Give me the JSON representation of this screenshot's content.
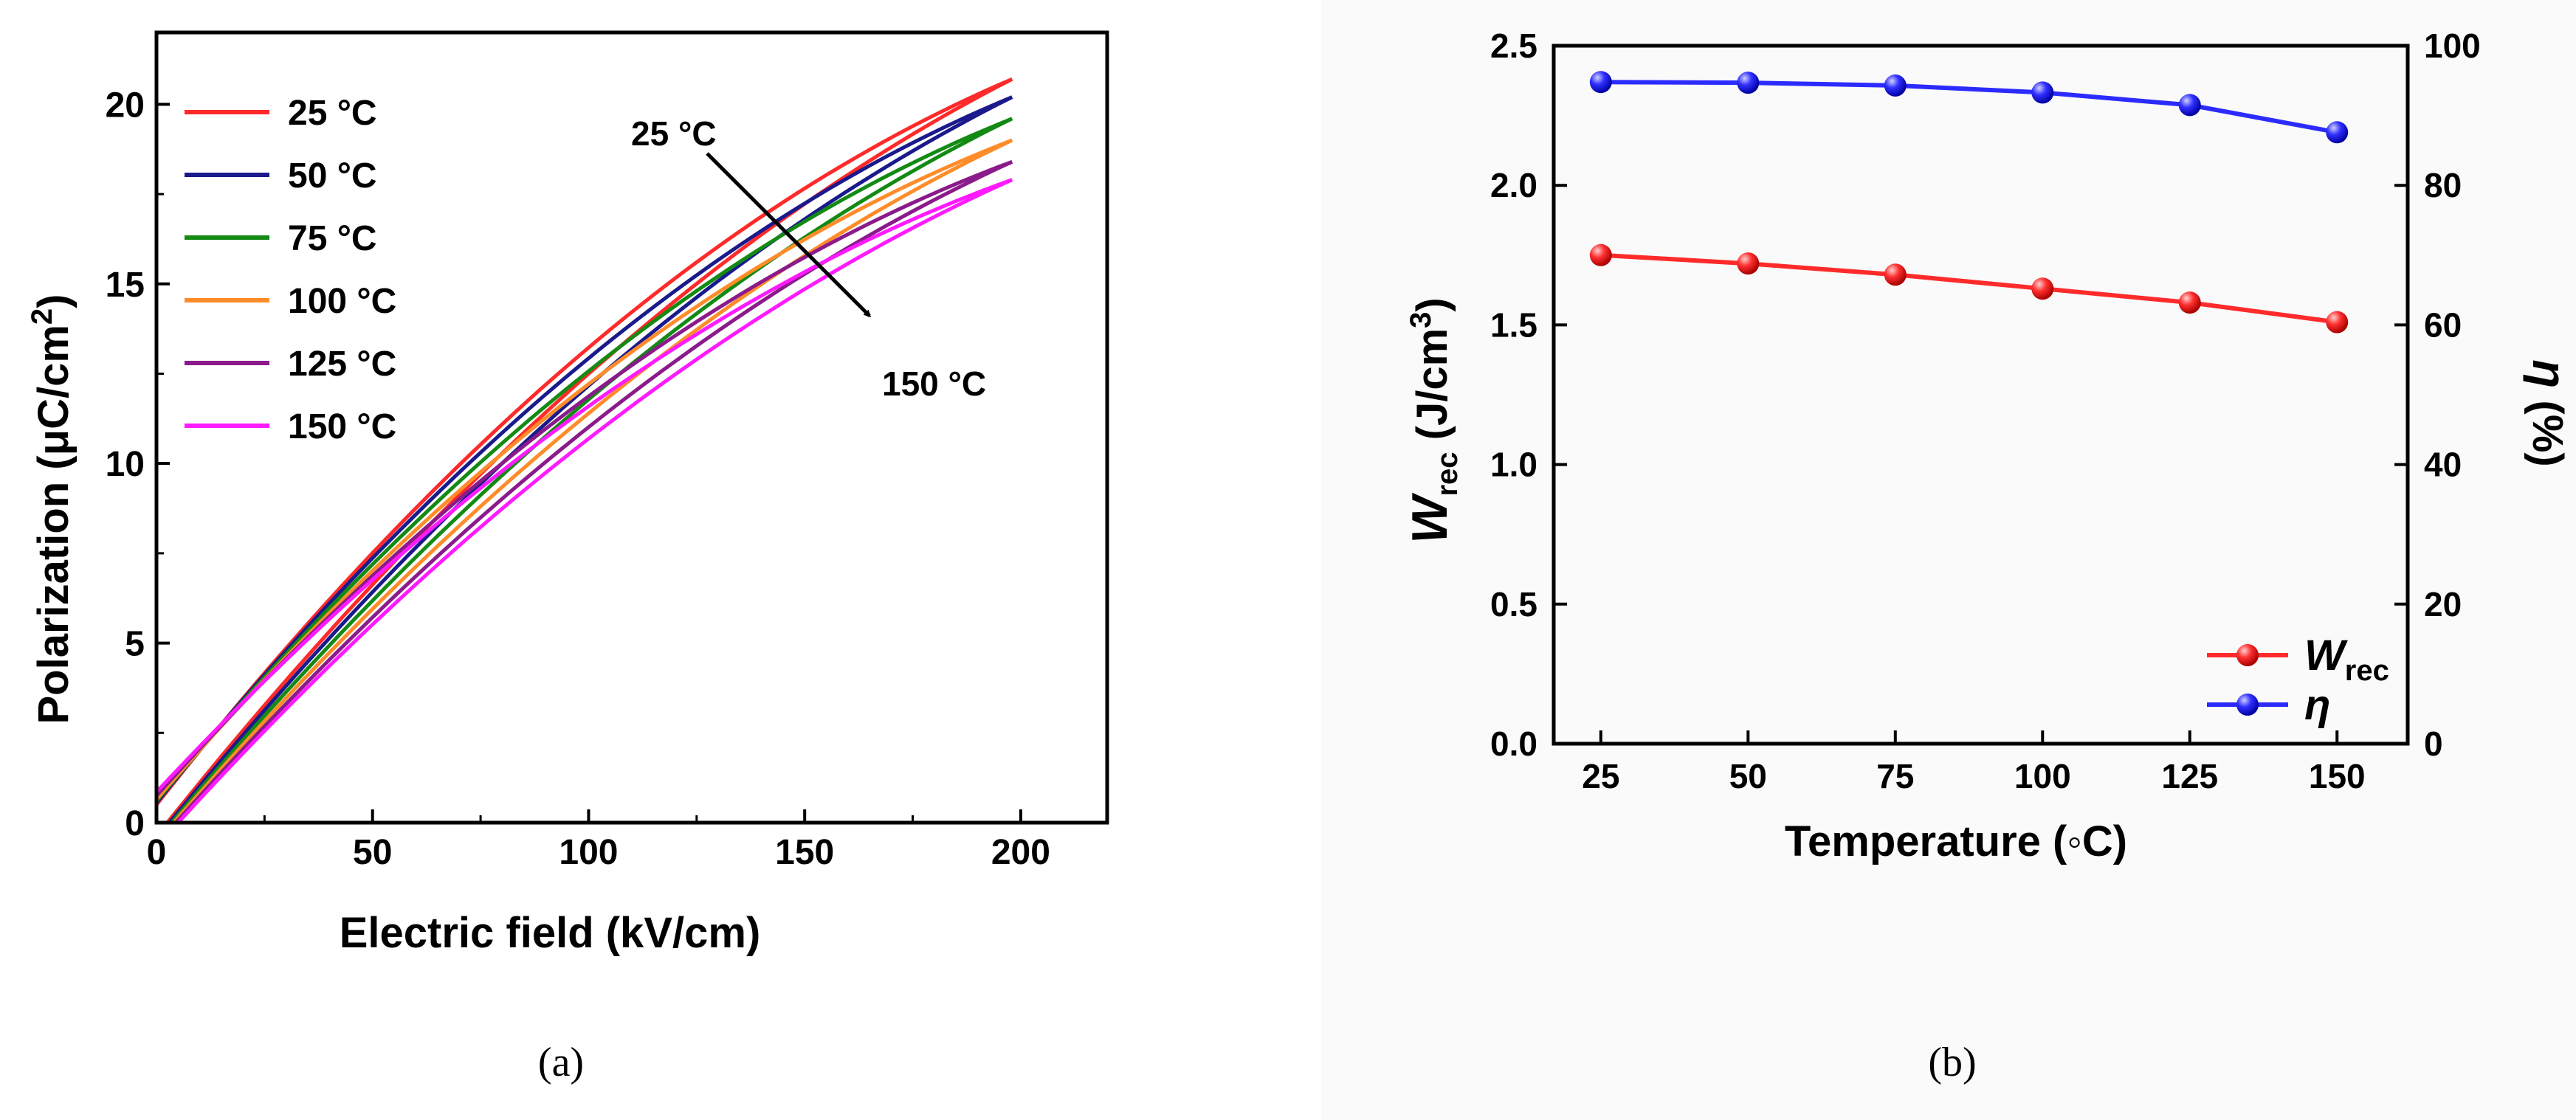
{
  "chart_data": [
    {
      "panel": "a",
      "caption": "(a)",
      "type": "line",
      "xlabel": "Electric field (kV/cm)",
      "ylabel": "Polarization (μC/cm²)",
      "ylabel_parts": {
        "main": "Polarization (μC/cm",
        "sup": "2",
        "end": ")"
      },
      "xlim": [
        0,
        220
      ],
      "ylim": [
        0,
        22
      ],
      "xticks": [
        0,
        50,
        100,
        150,
        200
      ],
      "yticks": [
        0,
        5,
        10,
        15,
        20
      ],
      "series": [
        {
          "name": "25 °C",
          "color": "#ff2a2a",
          "Pmax": 20.7,
          "Pr": 0.5,
          "Pr_low": 0.0,
          "shift": 2.5
        },
        {
          "name": "50 °C",
          "color": "#1a1a8c",
          "Pmax": 20.2,
          "Pr": 0.55,
          "Pr_low": 0.0,
          "shift": 3.0
        },
        {
          "name": "75 °C",
          "color": "#138a13",
          "Pmax": 19.6,
          "Pr": 0.6,
          "Pr_low": 0.0,
          "shift": 3.5
        },
        {
          "name": "100 °C",
          "color": "#ff8c2a",
          "Pmax": 19.0,
          "Pr": 0.65,
          "Pr_low": 0.0,
          "shift": 4.0
        },
        {
          "name": "125 °C",
          "color": "#8b1a8b",
          "Pmax": 18.4,
          "Pr": 0.75,
          "Pr_low": 0.0,
          "shift": 4.5
        },
        {
          "name": "150 °C",
          "color": "#ff1aff",
          "Pmax": 17.9,
          "Pr": 0.85,
          "Pr_low": 0.0,
          "shift": 5.0
        }
      ],
      "annotation_start": "25 °C",
      "annotation_end": "150 °C"
    },
    {
      "panel": "b",
      "caption": "(b)",
      "type": "line",
      "xlabel": "Temperature (◦C)",
      "ylabel_left_main": "W",
      "ylabel_left_sub": "rec",
      "ylabel_left_unit": " (J/cm",
      "ylabel_left_sup": "3",
      "ylabel_left_end": ")",
      "ylabel_right_main": "η",
      "ylabel_right_unit": " (%)",
      "x": [
        25,
        50,
        75,
        100,
        125,
        150
      ],
      "xticks": [
        25,
        50,
        75,
        100,
        125,
        150
      ],
      "xlim": [
        17,
        162
      ],
      "ylim_left": [
        0.0,
        2.5
      ],
      "yticks_left": [
        "0.0",
        "0.5",
        "1.0",
        "1.5",
        "2.0",
        "2.5"
      ],
      "ylim_right": [
        0,
        100
      ],
      "yticks_right": [
        "0",
        "20",
        "40",
        "60",
        "80",
        "100"
      ],
      "series": [
        {
          "name": "W",
          "name_sub": "rec",
          "axis": "left",
          "color": "#ff2b2b",
          "values": [
            1.75,
            1.72,
            1.68,
            1.63,
            1.58,
            1.51
          ]
        },
        {
          "name": "η",
          "axis": "right",
          "color": "#2b2bff",
          "values": [
            94.8,
            94.7,
            94.3,
            93.3,
            91.5,
            87.6
          ]
        }
      ]
    }
  ]
}
